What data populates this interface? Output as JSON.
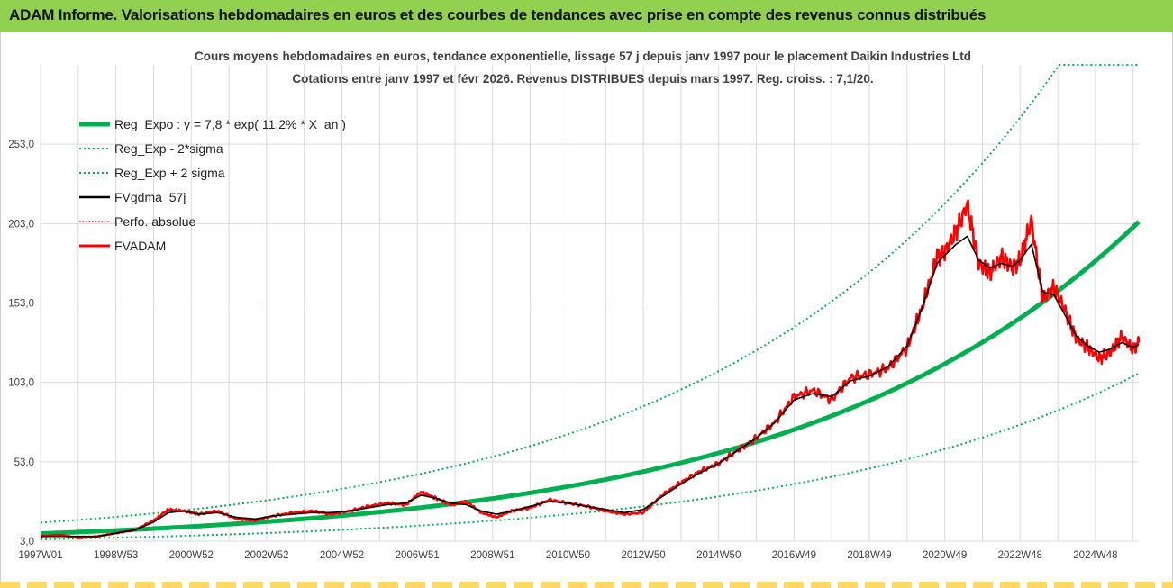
{
  "banner": {
    "title": "ADAM Informe. Valorisations hebdomadaires en euros et des courbes de tendances avec prise en compte des revenus connus distribués"
  },
  "colors": {
    "banner_bg": "#92d050",
    "reg_expo": "#00b050",
    "sigma": "#00b050",
    "fvgdma": "#000000",
    "perfo": "#ff0000",
    "fvadam": "#ff0000",
    "grid": "#d9d9d9",
    "strip": "#ffd966"
  },
  "chart_data": {
    "type": "line",
    "title_line1": "Cours moyens hebdomadaires en euros, tendance exponentielle, lissage 57 j depuis janv 1997 pour le placement Daikin Industries Ltd",
    "title_line2": "Cotations entre janv 1997 et févr 2026. Revenus DISTRIBUES depuis mars 1997. Reg. croiss. : 7,1/20.",
    "xlabel": "",
    "ylabel": "",
    "x_range": [
      1997.0,
      2026.15
    ],
    "ylim": [
      3.0,
      303.0
    ],
    "ytick_values": [
      3,
      53,
      103,
      153,
      203,
      253
    ],
    "yticks": [
      "3,0",
      "53,0",
      "103,0",
      "153,0",
      "203,0",
      "253,0"
    ],
    "xticks": [
      {
        "year": 1997.0,
        "label": "1997W01"
      },
      {
        "year": 1999.0,
        "label": "1998W53"
      },
      {
        "year": 2001.0,
        "label": "2000W52"
      },
      {
        "year": 2003.0,
        "label": "2002W52"
      },
      {
        "year": 2005.0,
        "label": "2004W52"
      },
      {
        "year": 2007.0,
        "label": "2006W51"
      },
      {
        "year": 2009.0,
        "label": "2008W51"
      },
      {
        "year": 2011.0,
        "label": "2010W50"
      },
      {
        "year": 2013.0,
        "label": "2012W50"
      },
      {
        "year": 2015.0,
        "label": "2014W50"
      },
      {
        "year": 2017.0,
        "label": "2016W49"
      },
      {
        "year": 2019.0,
        "label": "2018W49"
      },
      {
        "year": 2021.0,
        "label": "2020W49"
      },
      {
        "year": 2023.0,
        "label": "2022W48"
      },
      {
        "year": 2025.0,
        "label": "2024W48"
      }
    ],
    "legend_position": "top-left",
    "legend": [
      {
        "key": "reg_expo",
        "label": "Reg_Expo : y = 7,8 * exp( 11,2% *  X_an )",
        "style": "solid-thick"
      },
      {
        "key": "reg_minus",
        "label": "Reg_Exp - 2*sigma",
        "style": "dotted-green"
      },
      {
        "key": "reg_plus",
        "label": "Reg_Exp + 2 sigma",
        "style": "dotted-green"
      },
      {
        "key": "fvgdma",
        "label": "FVgdma_57j",
        "style": "solid-black"
      },
      {
        "key": "perfo",
        "label": "Perfo. absolue",
        "style": "dotted-red"
      },
      {
        "key": "fvadam",
        "label": "FVADAM",
        "style": "solid-red"
      }
    ],
    "regression": {
      "a": 7.8,
      "rate": 0.112,
      "sigma_factor": 1.88,
      "cap": 303
    },
    "series": [
      {
        "name": "FVADAM",
        "x": [
          1997.0,
          1997.5,
          1998.0,
          1998.5,
          1999.0,
          1999.5,
          2000.0,
          2000.4,
          2000.8,
          2001.2,
          2001.7,
          2002.2,
          2002.7,
          2003.2,
          2003.7,
          2004.2,
          2004.7,
          2005.2,
          2005.7,
          2006.2,
          2006.7,
          2007.1,
          2007.5,
          2007.9,
          2008.3,
          2008.7,
          2009.1,
          2009.5,
          2010.0,
          2010.5,
          2011.0,
          2011.5,
          2012.0,
          2012.5,
          2013.0,
          2013.5,
          2014.0,
          2014.5,
          2015.0,
          2015.5,
          2016.0,
          2016.5,
          2017.0,
          2017.5,
          2018.0,
          2018.5,
          2019.0,
          2019.5,
          2020.0,
          2020.4,
          2020.8,
          2021.0,
          2021.3,
          2021.6,
          2021.9,
          2022.2,
          2022.5,
          2022.8,
          2023.0,
          2023.3,
          2023.6,
          2023.9,
          2024.2,
          2024.5,
          2024.8,
          2025.1,
          2025.4,
          2025.7,
          2026.0,
          2026.15
        ],
        "y": [
          6,
          7,
          5,
          6,
          8,
          10,
          16,
          23,
          22,
          20,
          22,
          17,
          16,
          19,
          21,
          22,
          20,
          22,
          25,
          27,
          26,
          34,
          30,
          26,
          28,
          21,
          18,
          22,
          24,
          29,
          27,
          25,
          22,
          20,
          21,
          32,
          40,
          47,
          52,
          60,
          68,
          78,
          94,
          98,
          92,
          106,
          108,
          112,
          125,
          150,
          182,
          185,
          198,
          215,
          178,
          172,
          182,
          175,
          180,
          205,
          155,
          163,
          148,
          130,
          125,
          118,
          122,
          132,
          124,
          128
        ]
      },
      {
        "name": "FVgdma_57j",
        "x": [
          1997.0,
          1997.5,
          1998.0,
          1998.5,
          1999.0,
          1999.5,
          2000.0,
          2000.4,
          2000.8,
          2001.2,
          2001.7,
          2002.2,
          2002.7,
          2003.2,
          2003.7,
          2004.2,
          2004.7,
          2005.2,
          2005.7,
          2006.2,
          2006.7,
          2007.1,
          2007.5,
          2007.9,
          2008.3,
          2008.7,
          2009.1,
          2009.5,
          2010.0,
          2010.5,
          2011.0,
          2011.5,
          2012.0,
          2012.5,
          2013.0,
          2013.5,
          2014.0,
          2014.5,
          2015.0,
          2015.5,
          2016.0,
          2016.5,
          2017.0,
          2017.5,
          2018.0,
          2018.5,
          2019.0,
          2019.5,
          2020.0,
          2020.4,
          2020.8,
          2021.0,
          2021.3,
          2021.6,
          2021.9,
          2022.2,
          2022.5,
          2022.8,
          2023.0,
          2023.3,
          2023.6,
          2023.9,
          2024.2,
          2024.5,
          2024.8,
          2025.1,
          2025.4,
          2025.7,
          2026.0,
          2026.15
        ],
        "y": [
          6,
          6,
          6,
          6,
          8,
          10,
          15,
          21,
          22,
          20,
          21,
          18,
          17,
          19,
          20,
          21,
          21,
          22,
          24,
          26,
          27,
          32,
          30,
          27,
          26,
          22,
          20,
          22,
          25,
          28,
          27,
          25,
          23,
          21,
          23,
          31,
          39,
          46,
          52,
          60,
          68,
          78,
          92,
          96,
          94,
          104,
          107,
          113,
          126,
          150,
          178,
          183,
          190,
          195,
          180,
          175,
          178,
          176,
          180,
          190,
          160,
          158,
          145,
          132,
          126,
          122,
          124,
          128,
          125,
          127
        ]
      }
    ]
  }
}
